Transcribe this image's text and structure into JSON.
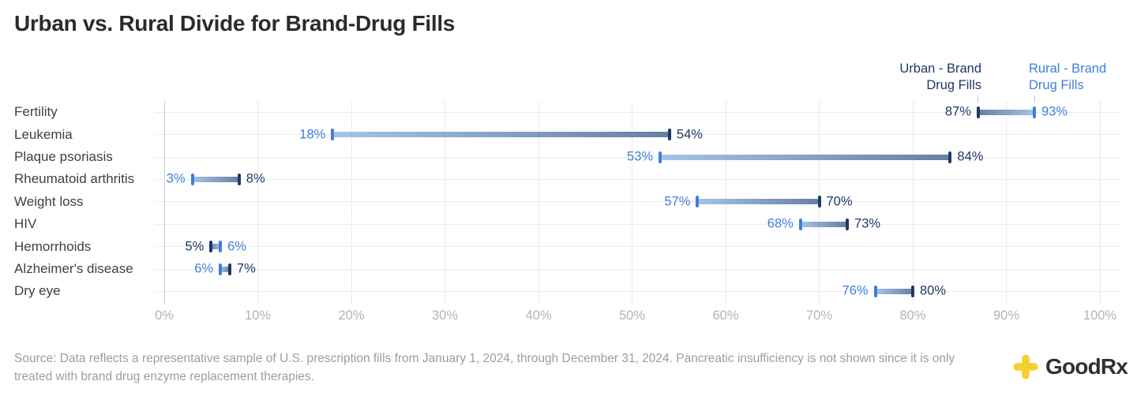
{
  "title": "Urban vs. Rural Divide for Brand-Drug Fills",
  "legend": {
    "urban_label": "Urban - Brand Drug Fills",
    "rural_label": "Rural - Brand Drug Fills"
  },
  "source_note": "Source: Data reflects a representative sample of U.S. prescription fills from January 1, 2024, through December 31, 2024. Pancreatic insufficiency is not shown since it is only treated with brand drug enzyme replacement therapies.",
  "logo": {
    "brand": "GoodRx",
    "icon": "goodrx-cross-icon"
  },
  "colors": {
    "urban": "#1d3a66",
    "rural": "#3f7fd9",
    "bar_light": "#a4c3eb",
    "bar_dark": "#66809f",
    "grid_minor": "#e9e9e9",
    "grid_axis": "#cccccc",
    "row_line": "#ededed",
    "axis_label": "#b4b4b4",
    "category_label": "#3f3f3f",
    "title_text": "#2b2b2b",
    "source_text": "#9d9d9d",
    "logo_yellow": "#f5cf2f",
    "logo_text": "#2e3138",
    "legend_pointer": "#c4c4c4"
  },
  "chart_data": {
    "type": "dumbbell",
    "title": "Urban vs. Rural Divide for Brand-Drug Fills",
    "categories": [
      "Fertility",
      "Leukemia",
      "Plaque psoriasis",
      "Rheumatoid arthritis",
      "Weight loss",
      "HIV",
      "Hemorrhoids",
      "Alzheimer's disease",
      "Dry eye"
    ],
    "series": [
      {
        "name": "Urban - Brand Drug Fills",
        "color": "#1d3a66",
        "values": [
          87,
          54,
          84,
          8,
          70,
          73,
          5,
          7,
          80
        ]
      },
      {
        "name": "Rural - Brand Drug Fills",
        "color": "#3f7fd9",
        "values": [
          93,
          18,
          53,
          3,
          57,
          68,
          6,
          6,
          76
        ]
      }
    ],
    "value_suffix": "%",
    "xlim": [
      0,
      100
    ],
    "xtick_step": 10,
    "xtick_labels": [
      "0%",
      "10%",
      "20%",
      "30%",
      "40%",
      "50%",
      "60%",
      "70%",
      "80%",
      "90%",
      "100%"
    ],
    "grid": "vertical gridlines at each 10%, faint horizontal line per row",
    "legend_position": "top-right with pointer ticks to first row (Fertility)",
    "value_labels": "at both ends of each bar, colored by series"
  }
}
